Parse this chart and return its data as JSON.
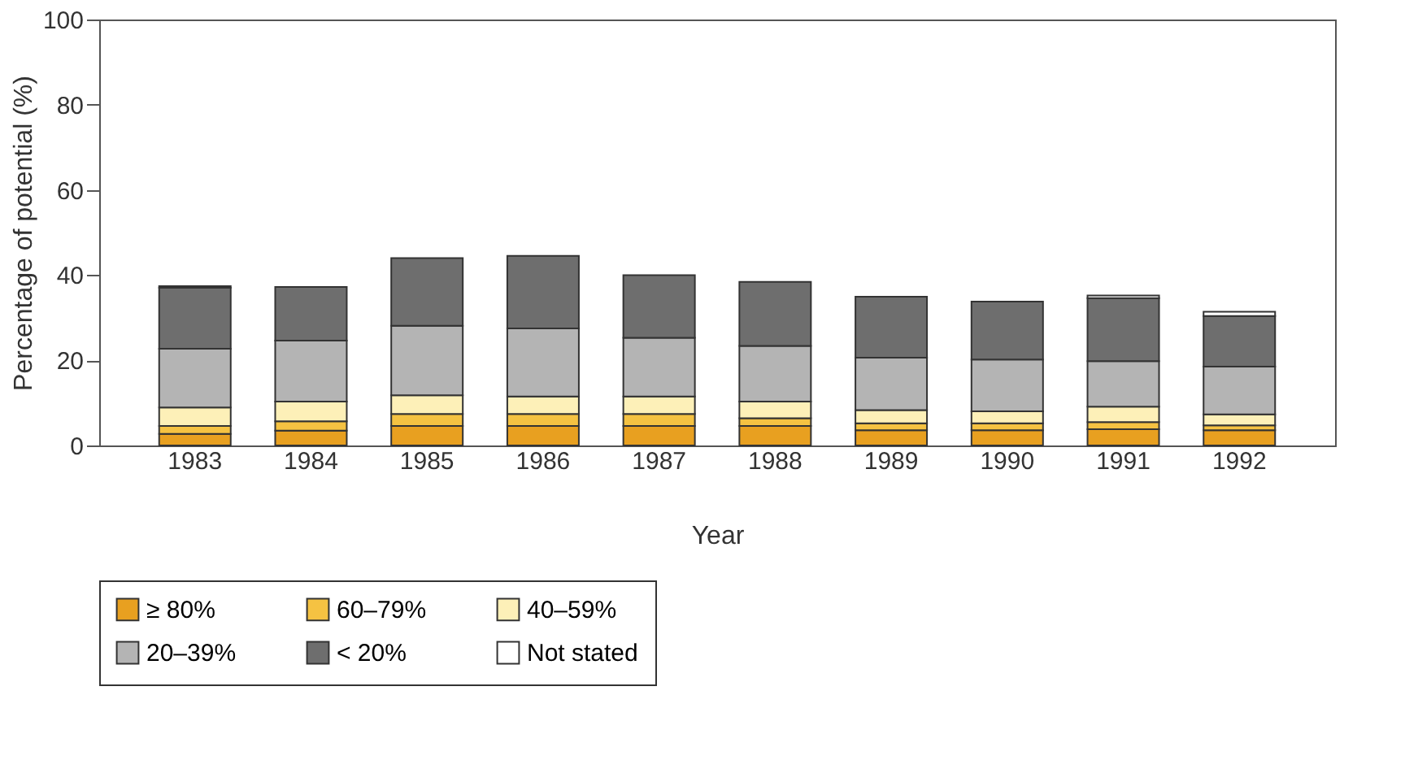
{
  "chart_data": {
    "type": "bar",
    "stacked": true,
    "xlabel": "Year",
    "ylabel": "Percentage of potential (%)",
    "categories": [
      "1983",
      "1984",
      "1985",
      "1986",
      "1987",
      "1988",
      "1989",
      "1990",
      "1991",
      "1992"
    ],
    "series": [
      {
        "name": "≥ 80%",
        "color": "#e8a020",
        "values": [
          2.7,
          3.5,
          4.6,
          4.6,
          4.6,
          4.6,
          3.6,
          3.6,
          3.8,
          3.6
        ]
      },
      {
        "name": "60–79%",
        "color": "#f5c242",
        "values": [
          1.9,
          2.2,
          2.8,
          2.8,
          2.8,
          1.8,
          1.6,
          1.6,
          1.7,
          1.1
        ]
      },
      {
        "name": "40–59%",
        "color": "#fdf0b8",
        "values": [
          4.3,
          4.6,
          4.4,
          4.1,
          4.1,
          3.9,
          3.1,
          2.8,
          3.6,
          2.6
        ]
      },
      {
        "name": "20–39%",
        "color": "#b4b4b4",
        "values": [
          13.8,
          14.3,
          16.3,
          16.0,
          13.8,
          13.1,
          12.3,
          12.2,
          10.7,
          11.2
        ]
      },
      {
        "name": "< 20%",
        "color": "#6e6e6e",
        "values": [
          14.3,
          12.6,
          15.9,
          17.0,
          14.7,
          15.0,
          14.3,
          13.6,
          14.8,
          11.9
        ]
      },
      {
        "name": "Not stated",
        "color": "#ffffff",
        "values": [
          0.4,
          null,
          null,
          null,
          null,
          null,
          null,
          null,
          0.6,
          1.0
        ]
      }
    ],
    "ylim": [
      0,
      100
    ],
    "yticks": [
      0,
      20,
      40,
      60,
      80,
      100
    ],
    "legend": "bottom"
  }
}
